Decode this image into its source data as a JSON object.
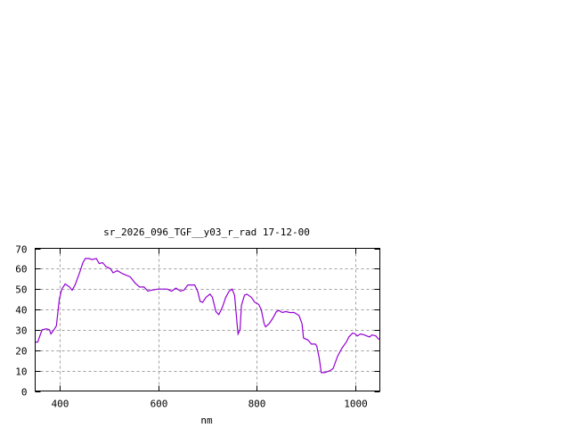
{
  "chart_data": {
    "type": "line",
    "title": "sr_2026_096_TGF__y03_r_rad 17-12-00",
    "xlabel": "nm",
    "ylabel": "",
    "xlim": [
      350,
      1050
    ],
    "ylim": [
      0,
      70
    ],
    "xticks": [
      400,
      600,
      800,
      1000
    ],
    "yticks": [
      0,
      10,
      20,
      30,
      40,
      50,
      60,
      70
    ],
    "grid": true,
    "legend": "none",
    "series": [
      {
        "color": "#9400d3",
        "x": [
          350,
          355,
          364,
          373,
          379,
          382,
          388,
          393,
          399,
          404,
          411,
          420,
          425,
          431,
          440,
          447,
          452,
          459,
          466,
          474,
          480,
          487,
          494,
          503,
          508,
          517,
          528,
          543,
          553,
          562,
          571,
          579,
          586,
          600,
          618,
          627,
          636,
          645,
          652,
          660,
          674,
          680,
          685,
          690,
          697,
          705,
          710,
          717,
          723,
          730,
          737,
          744,
          750,
          755,
          760,
          762,
          766,
          769,
          775,
          780,
          789,
          796,
          804,
          809,
          815,
          818,
          825,
          832,
          840,
          845,
          852,
          859,
          867,
          876,
          886,
          892,
          895,
          904,
          911,
          919,
          922,
          927,
          931,
          938,
          949,
          955,
          964,
          973,
          982,
          987,
          995,
          1000,
          1004,
          1011,
          1018,
          1024,
          1029,
          1034,
          1042,
          1047,
          1050
        ],
        "y": [
          24,
          24,
          30,
          30.5,
          30,
          28,
          30,
          32,
          45,
          50,
          52.5,
          51,
          49.5,
          52,
          58,
          63,
          65,
          65,
          64.5,
          65,
          62.5,
          63,
          61,
          60,
          58,
          59,
          57.5,
          56,
          53,
          51,
          51,
          49,
          49.5,
          50,
          50,
          49,
          50.5,
          49,
          49.5,
          52,
          52,
          49,
          44,
          43.5,
          46,
          47.5,
          46,
          39,
          37.5,
          41,
          46,
          49,
          50,
          47,
          33,
          28,
          30,
          42,
          47,
          47.5,
          46,
          43.5,
          42.5,
          40,
          33,
          31.5,
          33,
          35.5,
          39,
          39.5,
          38.5,
          39,
          38.5,
          38.5,
          37,
          33,
          26,
          25,
          23,
          23,
          22,
          16,
          9,
          9,
          10,
          11,
          17,
          21,
          24,
          26.5,
          28.5,
          28,
          27,
          28,
          27.5,
          27,
          26.5,
          27.5,
          27,
          25.5,
          25.5
        ]
      }
    ]
  }
}
